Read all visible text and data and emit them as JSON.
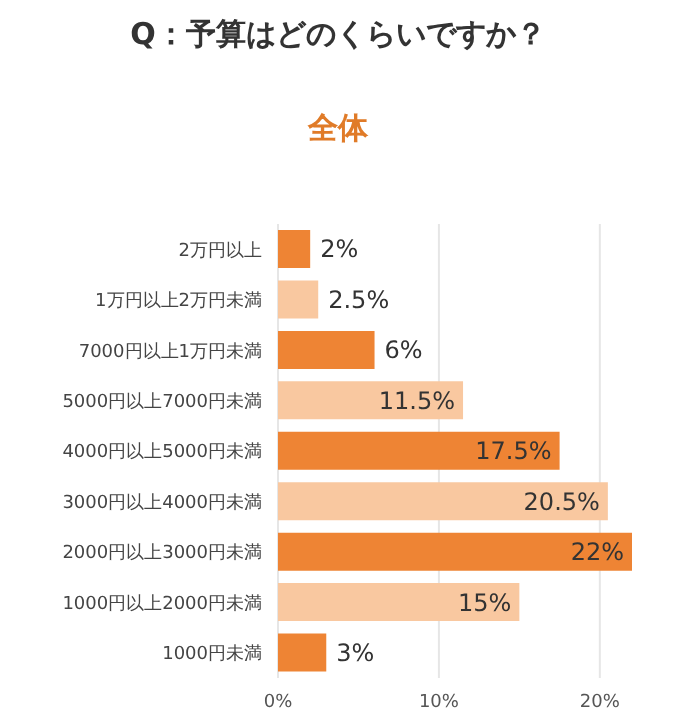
{
  "chart_data": {
    "type": "bar",
    "orientation": "horizontal",
    "title": "Q：予算はどのくらいですか？",
    "subtitle": "全体",
    "categories": [
      "2万円以上",
      "1万円以上2万円未満",
      "7000円以上1万円未満",
      "5000円以上7000円未満",
      "4000円以上5000円未満",
      "3000円以上4000円未満",
      "2000円以上3000円未満",
      "1000円以上2000円未満",
      "1000円未満"
    ],
    "values": [
      2,
      2.5,
      6,
      11.5,
      17.5,
      20.5,
      22,
      15,
      3
    ],
    "colors": [
      "#ee8434",
      "#f9c8a0",
      "#ee8434",
      "#f9c8a0",
      "#ee8434",
      "#f9c8a0",
      "#ee8434",
      "#f9c8a0",
      "#ee8434"
    ],
    "value_labels": [
      "2%",
      "2.5%",
      "6%",
      "11.5%",
      "17.5%",
      "20.5%",
      "22%",
      "15%",
      "3%"
    ],
    "xlim": [
      0,
      22
    ],
    "xticks": [
      {
        "value": 0,
        "label": "0%"
      },
      {
        "value": 10,
        "label": "10%"
      },
      {
        "value": 20,
        "label": "20%"
      }
    ],
    "grid": "x"
  }
}
